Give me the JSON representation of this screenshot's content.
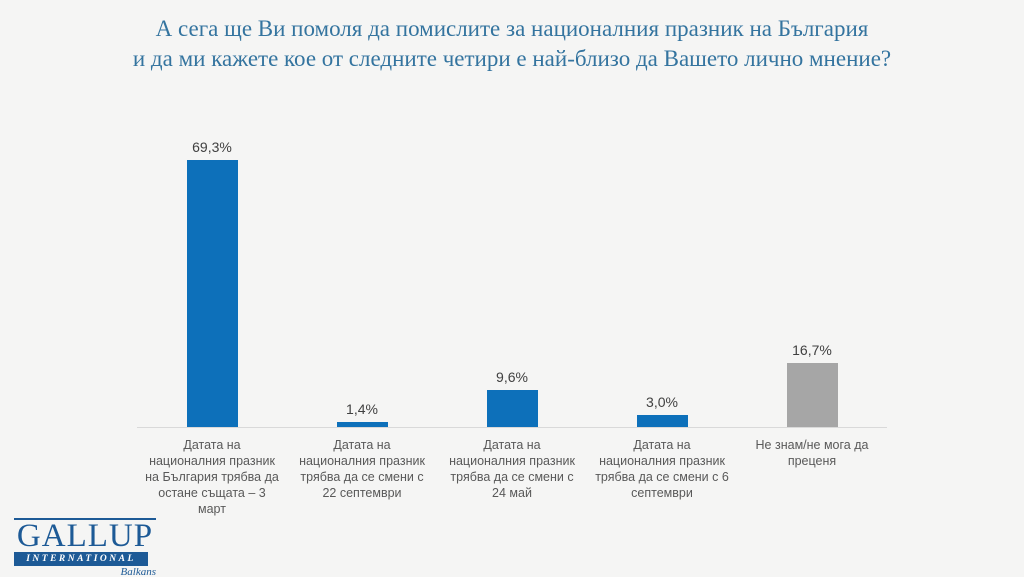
{
  "title": {
    "line1": "А сега ще Ви помоля да помислите за националния празник на България",
    "line2": "и да ми кажете кое от следните четири е най-близо да Вашето лично мнение?"
  },
  "chart_data": {
    "type": "bar",
    "title": "А сега ще Ви помоля да помислите за националния празник на България и да ми кажете кое от следните четири е най-близо да Вашето лично мнение?",
    "categories": [
      "Датата на националния празник на България трябва да остане същата – 3 март",
      "Датата на националния празник трябва да се смени с 22 септември",
      "Датата на националния празник трябва да се смени с 24 май",
      "Датата на националния празник трябва да се смени с 6 септември",
      "Не знам/не мога да преценя"
    ],
    "values": [
      69.3,
      1.4,
      9.6,
      3.0,
      16.7
    ],
    "value_labels": [
      "69,3%",
      "1,4%",
      "9,6%",
      "3,0%",
      "16,7%"
    ],
    "bar_colors": [
      "#0d70ba",
      "#0d70ba",
      "#0d70ba",
      "#0d70ba",
      "#a6a6a6"
    ],
    "xlabel": "",
    "ylabel": "",
    "ylim": [
      0,
      75
    ],
    "grid": false,
    "legend": "none",
    "value_label_position": "above-bar",
    "unit": "%"
  },
  "colors": {
    "background": "#f5f5f4",
    "bar_blue": "#0d70ba",
    "bar_gray": "#a6a6a6",
    "title_text": "#34749f",
    "value_text": "#404040",
    "category_text": "#595959",
    "axis_line": "#d9d9d9",
    "logo_blue": "#1d5a96"
  },
  "logo": {
    "name": "GALLUP",
    "subtitle": "INTERNATIONAL",
    "region": "Balkans"
  }
}
